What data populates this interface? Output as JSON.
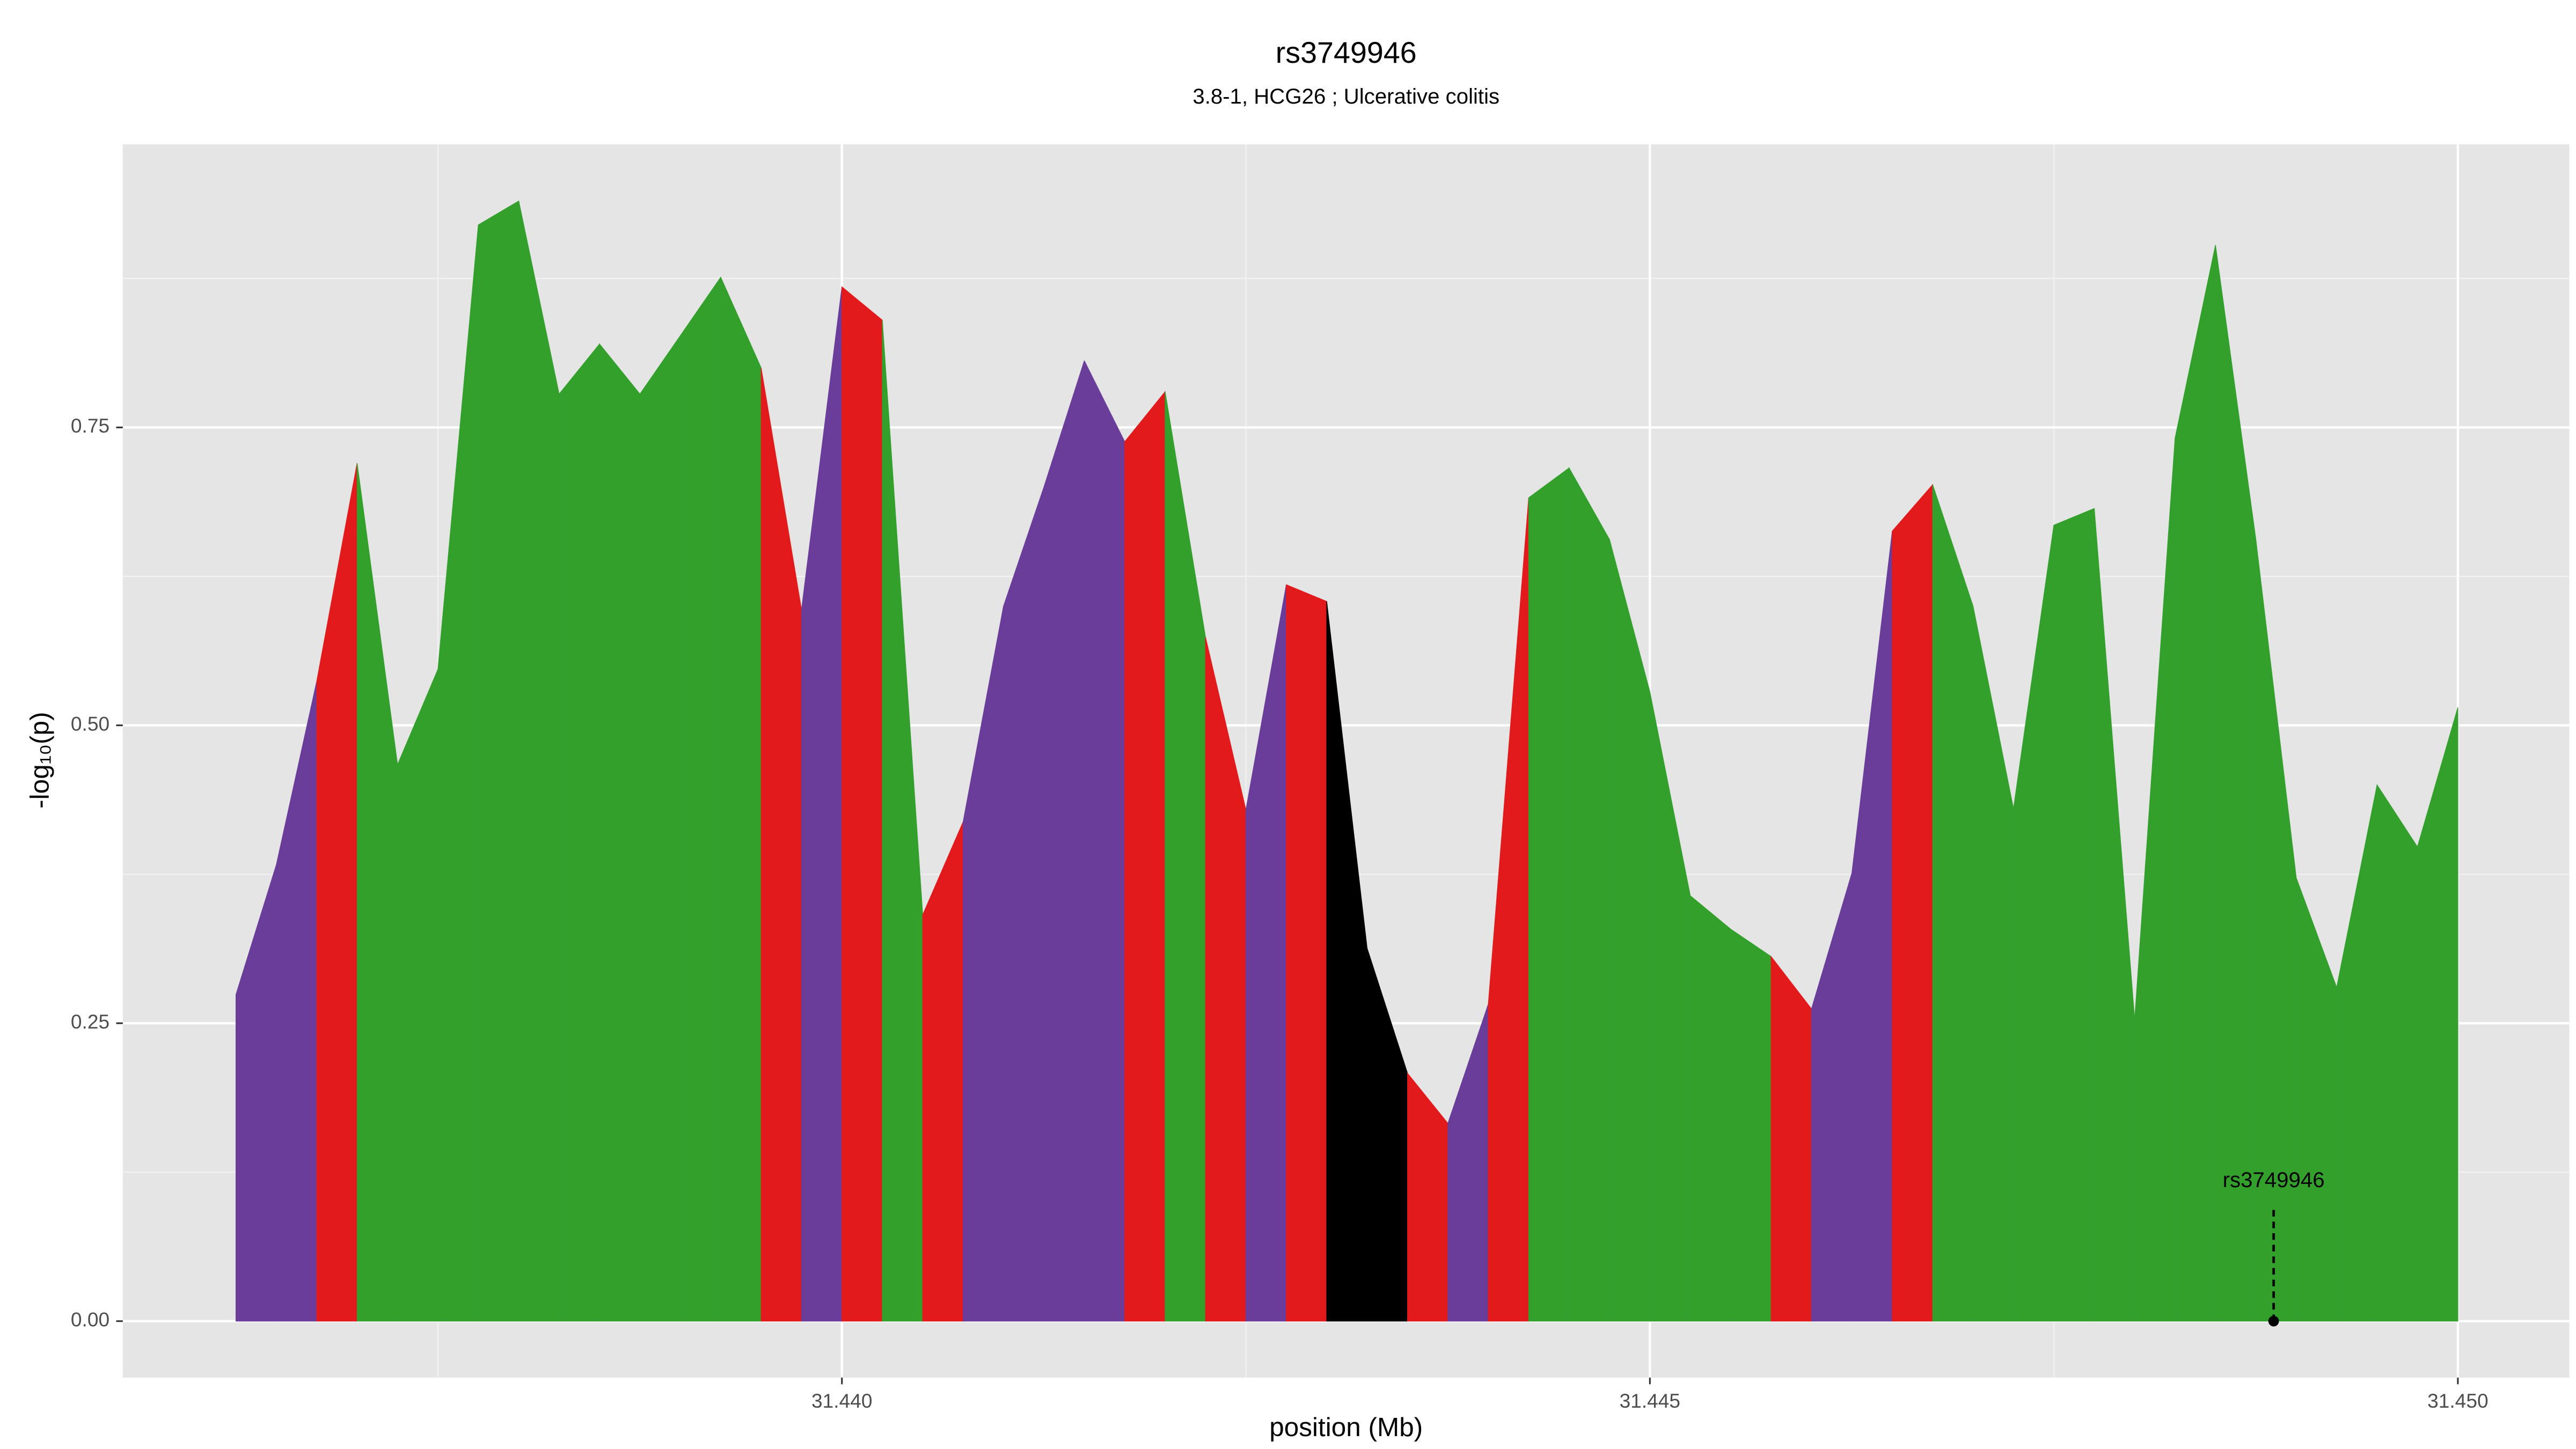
{
  "chart_data": {
    "type": "area",
    "title": "rs3749946",
    "subtitle": "3.8-1, HCG26 ; Ulcerative colitis",
    "xlabel": "position (Mb)",
    "ylabel": "-log₁₀(p)",
    "x": [
      31.43625,
      31.4365,
      31.43675,
      31.437,
      31.43725,
      31.4375,
      31.43775,
      31.438,
      31.43825,
      31.4385,
      31.43875,
      31.439,
      31.43925,
      31.4395,
      31.43975,
      31.44,
      31.44025,
      31.4405,
      31.44075,
      31.441,
      31.44125,
      31.4415,
      31.44175,
      31.442,
      31.44225,
      31.4425,
      31.44275,
      31.443,
      31.44325,
      31.4435,
      31.44375,
      31.444,
      31.44425,
      31.4445,
      31.44475,
      31.445,
      31.44525,
      31.4455,
      31.44575,
      31.446,
      31.44625,
      31.4465,
      31.44675,
      31.447,
      31.44725,
      31.4475,
      31.44775,
      31.448,
      31.44825,
      31.4485,
      31.44875,
      31.449,
      31.44925,
      31.4495,
      31.44975,
      31.45
    ],
    "values": [
      0.274,
      0.383,
      0.537,
      0.72,
      0.467,
      0.547,
      0.92,
      0.94,
      0.778,
      0.82,
      0.778,
      0.827,
      0.876,
      0.8,
      0.597,
      0.868,
      0.84,
      0.341,
      0.419,
      0.6,
      0.7,
      0.806,
      0.738,
      0.78,
      0.574,
      0.429,
      0.618,
      0.604,
      0.313,
      0.208,
      0.166,
      0.266,
      0.691,
      0.716,
      0.656,
      0.528,
      0.357,
      0.329,
      0.306,
      0.262,
      0.376,
      0.663,
      0.702,
      0.6,
      0.43,
      0.668,
      0.682,
      0.253,
      0.741,
      0.903,
      0.656,
      0.372,
      0.28,
      0.45,
      0.398,
      0.515
    ],
    "segment_colors": [
      "#6a3d9a",
      "#6a3d9a",
      "#e31a1c",
      "#33a02c",
      "#33a02c",
      "#33a02c",
      "#33a02c",
      "#33a02c",
      "#33a02c",
      "#33a02c",
      "#33a02c",
      "#33a02c",
      "#33a02c",
      "#e31a1c",
      "#6a3d9a",
      "#e31a1c",
      "#33a02c",
      "#e31a1c",
      "#6a3d9a",
      "#6a3d9a",
      "#6a3d9a",
      "#6a3d9a",
      "#e31a1c",
      "#33a02c",
      "#e31a1c",
      "#6a3d9a",
      "#e31a1c",
      "#000000",
      "#000000",
      "#e31a1c",
      "#6a3d9a",
      "#e31a1c",
      "#33a02c",
      "#33a02c",
      "#33a02c",
      "#33a02c",
      "#33a02c",
      "#33a02c",
      "#e31a1c",
      "#6a3d9a",
      "#6a3d9a",
      "#e31a1c",
      "#33a02c",
      "#33a02c",
      "#33a02c",
      "#33a02c",
      "#33a02c",
      "#33a02c",
      "#33a02c",
      "#33a02c",
      "#33a02c",
      "#33a02c",
      "#33a02c",
      "#33a02c",
      "#33a02c"
    ],
    "xlim": [
      31.43555,
      31.45069
    ],
    "ylim": [
      -0.0474,
      0.9875
    ],
    "xticks": [
      {
        "value": 31.44,
        "label": "31.440"
      },
      {
        "value": 31.445,
        "label": "31.445"
      },
      {
        "value": 31.45,
        "label": "31.450"
      }
    ],
    "yticks": [
      {
        "value": 0,
        "label": "0.00"
      },
      {
        "value": 0.25,
        "label": "0.25"
      },
      {
        "value": 0.5,
        "label": "0.50"
      },
      {
        "value": 0.75,
        "label": "0.75"
      }
    ],
    "x_minor_ticks": [
      31.4375,
      31.4425,
      31.4475
    ],
    "y_minor_ticks": [
      0.125,
      0.375,
      0.625,
      0.875
    ],
    "grid": true,
    "annotation": {
      "text": "rs3749946",
      "x": 31.44886,
      "y": 0,
      "line_top": 0.095
    }
  }
}
